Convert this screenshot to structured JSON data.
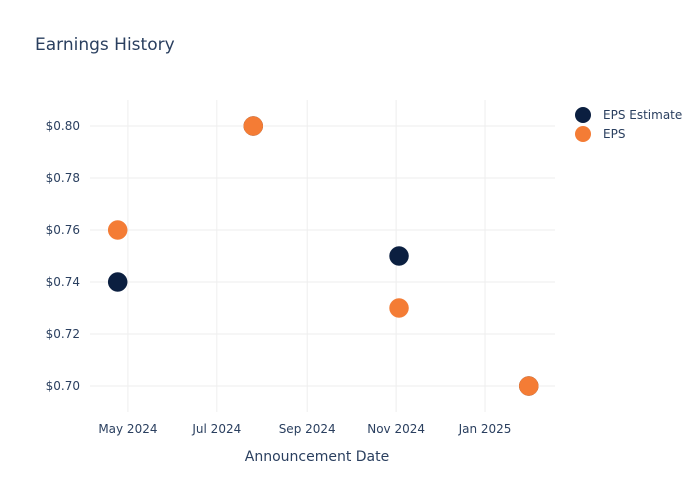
{
  "chart_data": {
    "type": "scatter",
    "title": "Earnings History",
    "xlabel": "Announcement Date",
    "ylabel": "",
    "x_ticks": [
      "May 2024",
      "Jul 2024",
      "Sep 2024",
      "Nov 2024",
      "Jan 2025"
    ],
    "y_ticks": [
      "$0.70",
      "$0.72",
      "$0.74",
      "$0.76",
      "$0.78",
      "$0.80"
    ],
    "ylim": [
      0.69,
      0.81
    ],
    "xlim": [
      "2024-04-05",
      "2025-02-18"
    ],
    "grid": true,
    "legend_position": "top-right",
    "series": [
      {
        "name": "EPS Estimate",
        "color": "#0b1f40",
        "points": [
          {
            "date": "2024-04-24",
            "value": 0.74
          },
          {
            "date": "2024-07-26",
            "value": 0.8
          },
          {
            "date": "2024-11-03",
            "value": 0.75
          },
          {
            "date": "2025-01-31",
            "value": 0.7
          }
        ]
      },
      {
        "name": "EPS",
        "color": "#f47c35",
        "points": [
          {
            "date": "2024-04-24",
            "value": 0.76
          },
          {
            "date": "2024-07-26",
            "value": 0.8
          },
          {
            "date": "2024-11-03",
            "value": 0.73
          },
          {
            "date": "2025-01-31",
            "value": 0.7
          }
        ]
      }
    ]
  }
}
